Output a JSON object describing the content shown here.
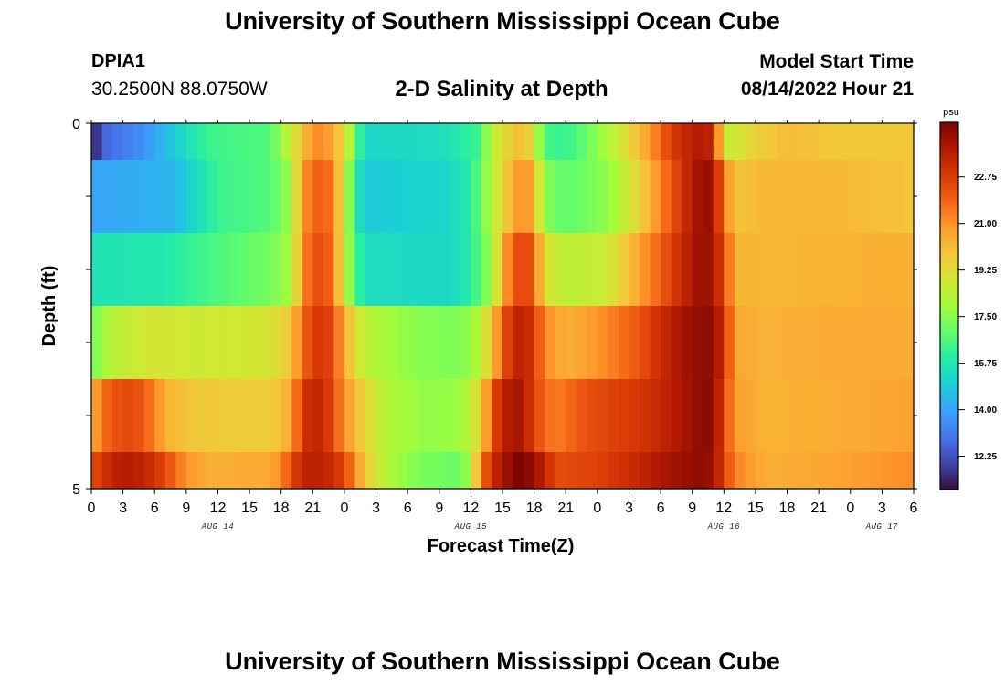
{
  "header": {
    "title": "University of Southern Mississippi Ocean Cube",
    "station_id": "DPIA1",
    "coordinates": "30.2500N  88.0750W",
    "subtitle": "2-D Salinity at Depth",
    "model_start_label": "Model Start Time",
    "model_start_value": "08/14/2022 Hour 21"
  },
  "footer": {
    "title": "University of Southern Mississippi Ocean Cube"
  },
  "colors": {
    "colormap": [
      "#30123b",
      "#4145ab",
      "#4675ed",
      "#39a2fc",
      "#1bcfd4",
      "#24eca6",
      "#61fc6c",
      "#a4fc3b",
      "#d1e834",
      "#f3c63a",
      "#fe9b2d",
      "#f36315",
      "#d93806",
      "#b11901",
      "#7a0402"
    ]
  },
  "chart_data": {
    "type": "heatmap",
    "title": "2-D Salinity at Depth",
    "xlabel": "Forecast Time(Z)",
    "ylabel": "Depth (ft)",
    "y_ticks": [
      "0",
      "5"
    ],
    "ylim": [
      0,
      5
    ],
    "x_tick_labels": [
      "0",
      "3",
      "6",
      "9",
      "12",
      "15",
      "18",
      "21",
      "0",
      "3",
      "6",
      "9",
      "12",
      "15",
      "18",
      "21",
      "0",
      "3",
      "6",
      "9",
      "12",
      "15",
      "18",
      "21",
      "0",
      "3",
      "6"
    ],
    "date_labels": [
      {
        "label": "AUG 14",
        "hour": 12
      },
      {
        "label": "AUG 15",
        "hour": 36
      },
      {
        "label": "AUG 16",
        "hour": 60
      },
      {
        "label": "AUG 17",
        "hour": 75
      }
    ],
    "x_hours_total": 78,
    "colorbar": {
      "unit": "psu",
      "min": 11.0,
      "max": 24.8,
      "tick_labels": [
        "12.25",
        "14.00",
        "15.75",
        "17.50",
        "19.25",
        "21.00",
        "22.75"
      ]
    },
    "depth_layers": [
      {
        "depth_range": [
          0.0,
          0.5
        ],
        "keyframes": [
          [
            0,
            10.8
          ],
          [
            1,
            12.6
          ],
          [
            5,
            13.6
          ],
          [
            11,
            16.3
          ],
          [
            17,
            16.7
          ],
          [
            19,
            18.8
          ],
          [
            21,
            21.0
          ],
          [
            22,
            21.2
          ],
          [
            24,
            19.5
          ],
          [
            25,
            17.0
          ],
          [
            26,
            15.2
          ],
          [
            33,
            15.4
          ],
          [
            37,
            16.4
          ],
          [
            38,
            18.6
          ],
          [
            40,
            19.7
          ],
          [
            41,
            20.3
          ],
          [
            42,
            18.8
          ],
          [
            43,
            16.5
          ],
          [
            45,
            16.2
          ],
          [
            47,
            17.0
          ],
          [
            50,
            18.7
          ],
          [
            53,
            20.9
          ],
          [
            55,
            22.8
          ],
          [
            57,
            23.6
          ],
          [
            58,
            23.9
          ],
          [
            59,
            23.3
          ],
          [
            60,
            18.5
          ],
          [
            61,
            18.8
          ],
          [
            63,
            19.6
          ],
          [
            66,
            20.1
          ],
          [
            70,
            19.8
          ],
          [
            78,
            19.8
          ]
        ]
      },
      {
        "depth_range": [
          0.5,
          1.5
        ],
        "keyframes": [
          [
            0,
            14.0
          ],
          [
            8,
            14.4
          ],
          [
            12,
            16.3
          ],
          [
            17,
            16.7
          ],
          [
            19,
            17.8
          ],
          [
            20,
            21.0
          ],
          [
            22,
            22.2
          ],
          [
            23,
            21.2
          ],
          [
            24,
            18.8
          ],
          [
            25,
            16.0
          ],
          [
            26,
            14.8
          ],
          [
            34,
            15.2
          ],
          [
            36,
            16.0
          ],
          [
            38,
            18.2
          ],
          [
            39,
            19.5
          ],
          [
            41,
            21.3
          ],
          [
            42,
            20.3
          ],
          [
            43,
            17.5
          ],
          [
            45,
            16.8
          ],
          [
            49,
            17.6
          ],
          [
            52,
            19.5
          ],
          [
            54,
            21.3
          ],
          [
            56,
            23.0
          ],
          [
            58,
            24.4
          ],
          [
            59,
            24.0
          ],
          [
            60,
            21.5
          ],
          [
            61,
            19.9
          ],
          [
            64,
            20.2
          ],
          [
            70,
            20.2
          ],
          [
            78,
            19.9
          ]
        ]
      },
      {
        "depth_range": [
          1.5,
          2.5
        ],
        "keyframes": [
          [
            0,
            15.6
          ],
          [
            7,
            15.8
          ],
          [
            12,
            16.6
          ],
          [
            17,
            17.2
          ],
          [
            19,
            18.0
          ],
          [
            20,
            21.0
          ],
          [
            21,
            22.2
          ],
          [
            22,
            22.4
          ],
          [
            23,
            21.5
          ],
          [
            24,
            18.6
          ],
          [
            25,
            16.6
          ],
          [
            26,
            15.4
          ],
          [
            34,
            15.2
          ],
          [
            36,
            16.0
          ],
          [
            38,
            17.8
          ],
          [
            39,
            20.3
          ],
          [
            40,
            22.0
          ],
          [
            41,
            22.8
          ],
          [
            42,
            21.9
          ],
          [
            43,
            19.1
          ],
          [
            45,
            18.4
          ],
          [
            49,
            18.8
          ],
          [
            52,
            20.7
          ],
          [
            54,
            22.0
          ],
          [
            56,
            23.3
          ],
          [
            58,
            24.4
          ],
          [
            59,
            23.8
          ],
          [
            60,
            22.5
          ],
          [
            61,
            20.3
          ],
          [
            64,
            20.2
          ],
          [
            70,
            20.3
          ],
          [
            78,
            20.4
          ]
        ]
      },
      {
        "depth_range": [
          2.5,
          3.5
        ],
        "keyframes": [
          [
            0,
            17.0
          ],
          [
            1,
            17.9
          ],
          [
            3,
            18.6
          ],
          [
            6,
            19.0
          ],
          [
            10,
            18.8
          ],
          [
            17,
            19.0
          ],
          [
            19,
            19.9
          ],
          [
            20,
            21.7
          ],
          [
            21,
            22.7
          ],
          [
            22,
            23.0
          ],
          [
            23,
            22.3
          ],
          [
            24,
            20.4
          ],
          [
            26,
            18.4
          ],
          [
            30,
            17.6
          ],
          [
            34,
            17.3
          ],
          [
            36,
            17.6
          ],
          [
            38,
            19.8
          ],
          [
            39,
            22.0
          ],
          [
            40,
            23.3
          ],
          [
            41,
            23.7
          ],
          [
            42,
            22.8
          ],
          [
            43,
            21.2
          ],
          [
            45,
            20.3
          ],
          [
            49,
            21.2
          ],
          [
            52,
            22.2
          ],
          [
            54,
            23.2
          ],
          [
            56,
            24.0
          ],
          [
            58,
            24.5
          ],
          [
            59,
            24.3
          ],
          [
            60,
            23.2
          ],
          [
            61,
            20.6
          ],
          [
            64,
            20.3
          ],
          [
            70,
            20.5
          ],
          [
            78,
            20.5
          ]
        ]
      },
      {
        "depth_range": [
          3.5,
          4.5
        ],
        "keyframes": [
          [
            0,
            20.3
          ],
          [
            1,
            21.5
          ],
          [
            2,
            22.2
          ],
          [
            4,
            22.5
          ],
          [
            6,
            21.4
          ],
          [
            7,
            20.3
          ],
          [
            10,
            19.8
          ],
          [
            17,
            19.7
          ],
          [
            19,
            20.6
          ],
          [
            20,
            22.8
          ],
          [
            21,
            23.5
          ],
          [
            22,
            23.3
          ],
          [
            23,
            22.3
          ],
          [
            24,
            21.0
          ],
          [
            26,
            19.4
          ],
          [
            28,
            18.2
          ],
          [
            32,
            17.6
          ],
          [
            35,
            17.8
          ],
          [
            37,
            19.5
          ],
          [
            38,
            22.2
          ],
          [
            39,
            23.5
          ],
          [
            40,
            24.0
          ],
          [
            41,
            23.8
          ],
          [
            42,
            22.5
          ],
          [
            44,
            21.3
          ],
          [
            47,
            22.3
          ],
          [
            52,
            22.9
          ],
          [
            54,
            23.4
          ],
          [
            56,
            23.9
          ],
          [
            58,
            24.5
          ],
          [
            59,
            24.4
          ],
          [
            60,
            22.5
          ],
          [
            61,
            20.8
          ],
          [
            64,
            20.3
          ],
          [
            70,
            20.4
          ],
          [
            78,
            20.7
          ]
        ]
      },
      {
        "depth_range": [
          4.5,
          5.0
        ],
        "keyframes": [
          [
            0,
            22.2
          ],
          [
            1,
            23.0
          ],
          [
            3,
            23.8
          ],
          [
            5,
            23.5
          ],
          [
            7,
            22.5
          ],
          [
            9,
            21.0
          ],
          [
            11,
            20.4
          ],
          [
            17,
            20.5
          ],
          [
            18,
            21.2
          ],
          [
            20,
            23.5
          ],
          [
            22,
            23.6
          ],
          [
            24,
            22.6
          ],
          [
            25,
            21.2
          ],
          [
            26,
            19.8
          ],
          [
            28,
            18.2
          ],
          [
            31,
            17.3
          ],
          [
            35,
            17.0
          ],
          [
            36,
            18.2
          ],
          [
            37,
            21.5
          ],
          [
            38,
            23.2
          ],
          [
            39,
            23.9
          ],
          [
            40,
            24.6
          ],
          [
            41,
            24.8
          ],
          [
            43,
            23.5
          ],
          [
            44,
            22.4
          ],
          [
            48,
            22.6
          ],
          [
            52,
            23.4
          ],
          [
            54,
            23.9
          ],
          [
            56,
            24.2
          ],
          [
            58,
            24.5
          ],
          [
            59,
            24.1
          ],
          [
            60,
            22.7
          ],
          [
            61,
            21.3
          ],
          [
            64,
            20.4
          ],
          [
            70,
            20.6
          ],
          [
            76,
            21.0
          ],
          [
            78,
            21.1
          ]
        ]
      }
    ]
  }
}
